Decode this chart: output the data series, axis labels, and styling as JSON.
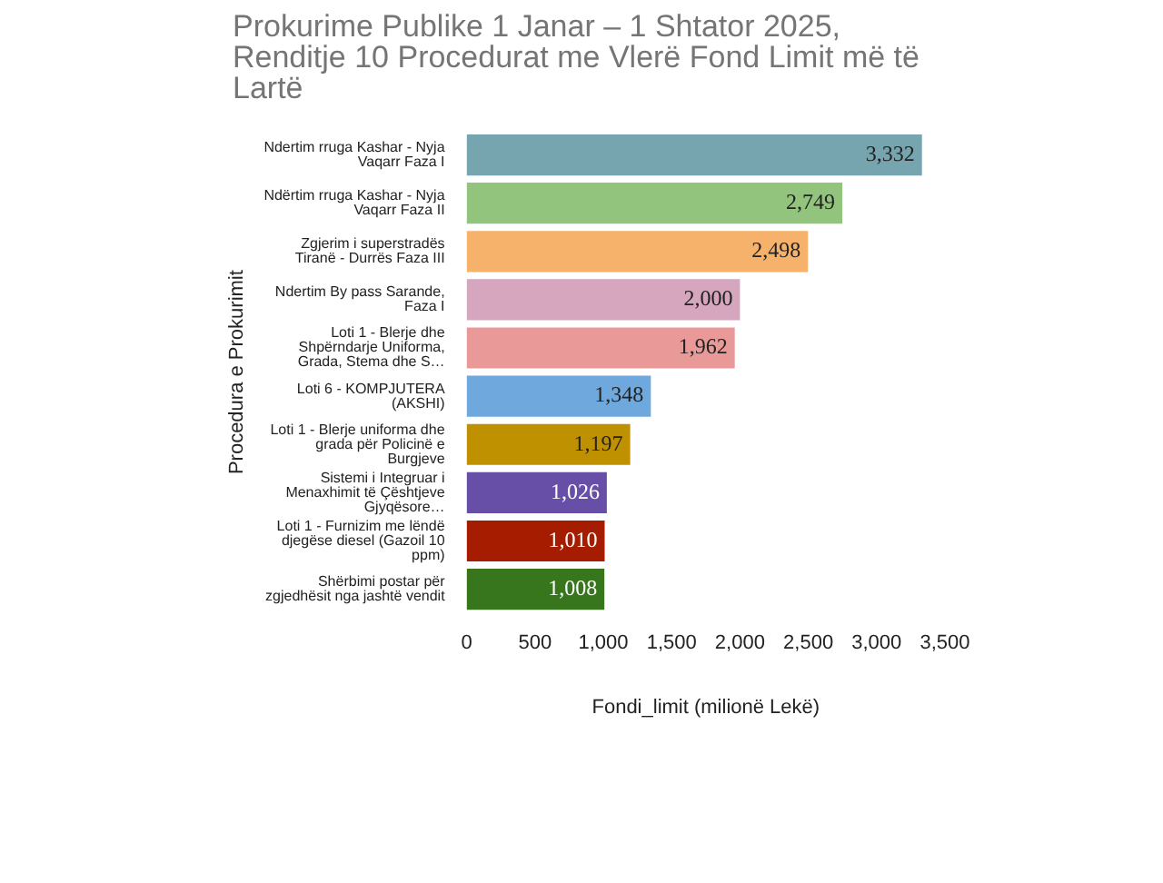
{
  "chart_data": {
    "type": "bar",
    "orientation": "horizontal",
    "title": "Prokurime Publike 1 Janar – 1 Shtator 2025, Renditje 10 Procedurat me Vlerë Fond Limit më të Lartë",
    "xlabel": "Fondi_limit (milionë Lekë)",
    "ylabel": "Procedura e Prokurimit",
    "categories": [
      "Ndertim rruga Kashar - Nyja Vaqarr Faza I",
      "Ndërtim rruga Kashar - Nyja Vaqarr Faza II",
      "Zgjerim i superstradës Tiranë - Durrës Faza III",
      "Ndertim By pass Sarande, Faza I",
      "Loti 1 - Blerje dhe Shpërndarje Uniforma, Grada, Stema dhe S…",
      "Loti 6 - KOMPJUTERA (AKSHI)",
      "Loti 1 - Blerje uniforma dhe grada për Policinë e Burgjeve",
      "Sistemi i Integruar i Menaxhimit të Çështjeve Gjyqësore…",
      "Loti 1 - Furnizim me lëndë djegëse diesel (Gazoil 10 ppm)",
      "Shërbimi postar për zgjedhësit nga jashtë vendit"
    ],
    "values": [
      3332,
      2749,
      2498,
      2000,
      1962,
      1348,
      1197,
      1026,
      1010,
      1008
    ],
    "colors": [
      "#76a5af",
      "#93c47d",
      "#f6b26b",
      "#d5a6bd",
      "#ea9999",
      "#6fa8dc",
      "#bf9000",
      "#674ea7",
      "#a61c00",
      "#38761d"
    ],
    "value_labels": [
      "3,332",
      "2,749",
      "2,498",
      "2,000",
      "1,962",
      "1,348",
      "1,197",
      "1,026",
      "1,010",
      "1,008"
    ],
    "xlim": [
      0,
      3500
    ],
    "xticks": [
      0,
      500,
      {
        "value": 1000,
        "label": "1,000"
      },
      {
        "value": 1500,
        "label": "1,500"
      },
      {
        "value": 2000,
        "label": "2,000"
      },
      {
        "value": 2500,
        "label": "2,500"
      },
      {
        "value": 3000,
        "label": "3,000"
      },
      {
        "value": 3500,
        "label": "3,500"
      }
    ],
    "grid": false,
    "legend": false
  }
}
